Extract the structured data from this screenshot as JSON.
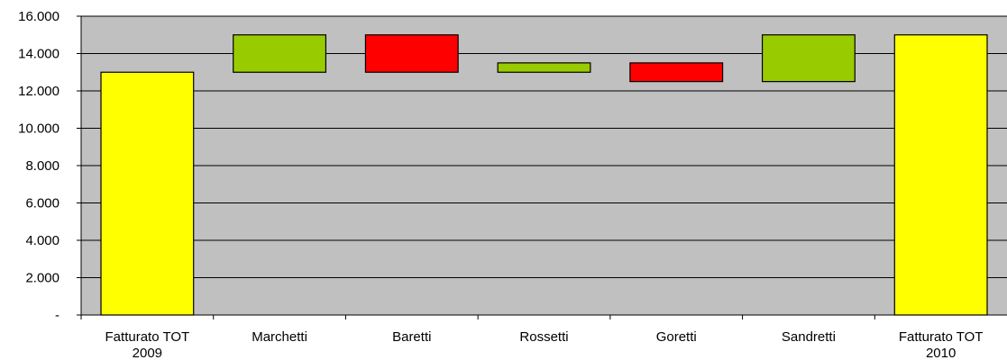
{
  "chart_data": {
    "type": "bar",
    "subtype": "waterfall",
    "title": "",
    "xlabel": "",
    "ylabel": "",
    "ylim": [
      0,
      16000
    ],
    "y_tick_labels": [
      "-",
      "2.000",
      "4.000",
      "6.000",
      "8.000",
      "10.000",
      "12.000",
      "14.000",
      "16.000"
    ],
    "y_tick_values": [
      0,
      2000,
      4000,
      6000,
      8000,
      10000,
      12000,
      14000,
      16000
    ],
    "grid": true,
    "legend": "none",
    "plot_background": "#c0c0c0",
    "categories": [
      {
        "label_lines": [
          "Fatturato TOT",
          "2009"
        ],
        "low": 0,
        "high": 13000,
        "color": "#ffff00"
      },
      {
        "label_lines": [
          "Marchetti"
        ],
        "low": 13000,
        "high": 15000,
        "color": "#99cc00"
      },
      {
        "label_lines": [
          "Baretti"
        ],
        "low": 13000,
        "high": 15000,
        "color": "#ff0000"
      },
      {
        "label_lines": [
          "Rossetti"
        ],
        "low": 13000,
        "high": 13500,
        "color": "#99cc00"
      },
      {
        "label_lines": [
          "Goretti"
        ],
        "low": 12500,
        "high": 13500,
        "color": "#ff0000"
      },
      {
        "label_lines": [
          "Sandretti"
        ],
        "low": 12500,
        "high": 15000,
        "color": "#99cc00"
      },
      {
        "label_lines": [
          "Fatturato TOT",
          "2010"
        ],
        "low": 0,
        "high": 15000,
        "color": "#ffff00"
      }
    ]
  }
}
